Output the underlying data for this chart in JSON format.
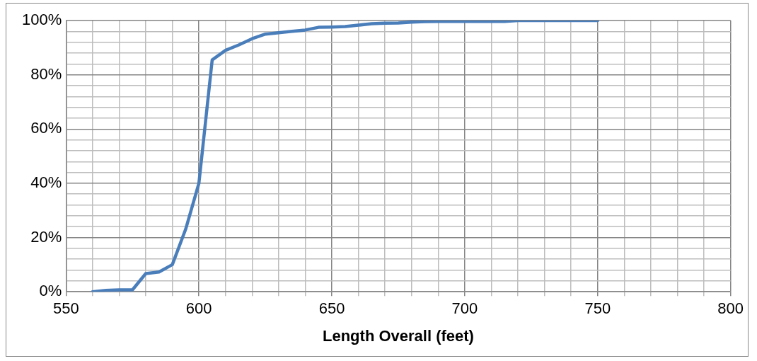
{
  "chart_data": {
    "type": "line",
    "xlabel": "Length Overall (feet)",
    "x": [
      560,
      565,
      570,
      575,
      580,
      585,
      590,
      595,
      600,
      605,
      610,
      615,
      620,
      625,
      630,
      635,
      640,
      645,
      650,
      655,
      660,
      665,
      670,
      675,
      680,
      685,
      690,
      700,
      710,
      715,
      720,
      730,
      740,
      750
    ],
    "series": [
      {
        "color": "#4a7ebb",
        "values": [
          0,
          0.5,
          0.7,
          0.7,
          6.7,
          7.3,
          10,
          23,
          40,
          85.5,
          89,
          91,
          93.3,
          95,
          95.5,
          96,
          96.5,
          97.5,
          97.6,
          97.8,
          98.3,
          98.8,
          99,
          99.1,
          99.4,
          99.6,
          99.7,
          99.7,
          99.7,
          99.7,
          100,
          100,
          100,
          100
        ]
      }
    ],
    "xlim": [
      550,
      800
    ],
    "xticks": [
      550,
      {
        "value": 560,
        "label": null
      },
      {
        "value": 570,
        "label": null
      },
      {
        "value": 580,
        "label": null
      },
      {
        "value": 590,
        "label": null
      },
      600,
      {
        "value": 610,
        "label": null
      },
      {
        "value": 620,
        "label": null
      },
      {
        "value": 630,
        "label": null
      },
      {
        "value": 640,
        "label": null
      },
      650,
      {
        "value": 660,
        "label": null
      },
      {
        "value": 670,
        "label": null
      },
      {
        "value": 680,
        "label": null
      },
      {
        "value": 690,
        "label": null
      },
      700,
      {
        "value": 710,
        "label": null
      },
      {
        "value": 720,
        "label": null
      },
      {
        "value": 730,
        "label": null
      },
      {
        "value": 740,
        "label": null
      },
      750,
      {
        "value": 760,
        "label": null
      },
      {
        "value": 770,
        "label": null
      },
      {
        "value": 780,
        "label": null
      },
      {
        "value": 790,
        "label": null
      },
      800
    ],
    "ylim": [
      0,
      100
    ],
    "yticks": [
      {
        "value": 0,
        "label": "0%"
      },
      {
        "value": 4,
        "label": null
      },
      {
        "value": 8,
        "label": null
      },
      {
        "value": 12,
        "label": null
      },
      {
        "value": 16,
        "label": null
      },
      {
        "value": 20,
        "label": "20%"
      },
      {
        "value": 24,
        "label": null
      },
      {
        "value": 28,
        "label": null
      },
      {
        "value": 32,
        "label": null
      },
      {
        "value": 36,
        "label": null
      },
      {
        "value": 40,
        "label": "40%"
      },
      {
        "value": 44,
        "label": null
      },
      {
        "value": 48,
        "label": null
      },
      {
        "value": 52,
        "label": null
      },
      {
        "value": 56,
        "label": null
      },
      {
        "value": 60,
        "label": "60%"
      },
      {
        "value": 64,
        "label": null
      },
      {
        "value": 68,
        "label": null
      },
      {
        "value": 72,
        "label": null
      },
      {
        "value": 76,
        "label": null
      },
      {
        "value": 80,
        "label": "80%"
      },
      {
        "value": 84,
        "label": null
      },
      {
        "value": 88,
        "label": null
      },
      {
        "value": 92,
        "label": null
      },
      {
        "value": 96,
        "label": null
      },
      {
        "value": 100,
        "label": "100%"
      }
    ],
    "grid": true,
    "marker": "none",
    "line_style": "solid",
    "legend": false
  }
}
